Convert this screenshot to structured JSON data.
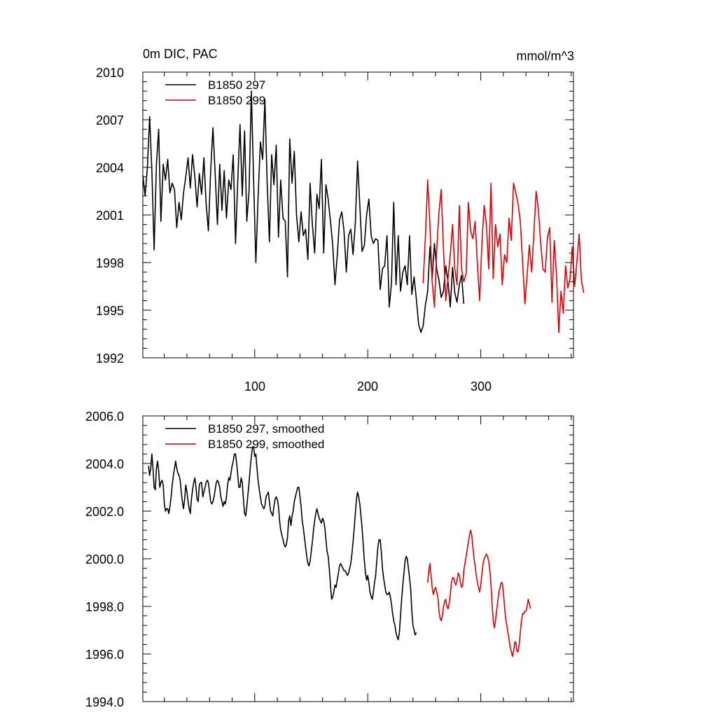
{
  "chart_data": [
    {
      "type": "line",
      "title": "0m DIC, PAC",
      "units": "mmol/m^3",
      "xlabel": "",
      "ylabel": "",
      "xlim": [
        1,
        382
      ],
      "ylim": [
        1992,
        2010
      ],
      "xticks": [
        100,
        200,
        300
      ],
      "xtick_labels": [
        "100",
        "200",
        "300"
      ],
      "yticks": [
        1992,
        1995,
        1998,
        2001,
        2004,
        2007,
        2010
      ],
      "ytick_labels": [
        "1992",
        "1995",
        "1998",
        "2001",
        "2004",
        "2007",
        "2010"
      ],
      "legend_position": "top-left",
      "series": [
        {
          "name": "B1850 297",
          "color": "#000000",
          "x_start": 1,
          "x_step": 2,
          "values": [
            2003.5,
            2002.2,
            2004.0,
            2007.2,
            2003.8,
            1998.8,
            2004.2,
            2006.4,
            2000.6,
            2004.2,
            2003.2,
            2004.5,
            2002.4,
            2003.0,
            2002.6,
            2000.2,
            2001.8,
            2000.7,
            2002.4,
            2003.4,
            2004.6,
            2002.7,
            2004.8,
            2003.4,
            2001.5,
            2003.6,
            2002.3,
            2004.6,
            2001.7,
            2000.0,
            2003.8,
            2006.5,
            2003.6,
            2000.4,
            2004.2,
            2001.3,
            2003.8,
            2000.8,
            2003.2,
            2002.6,
            2004.8,
            1999.2,
            2003.2,
            2006.7,
            2002.2,
            2006.3,
            2000.6,
            2002.5,
            2008.8,
            2003.2,
            1998.0,
            2002.1,
            2005.6,
            2004.5,
            2008.3,
            2003.0,
            1999.3,
            2004.8,
            2002.9,
            2005.4,
            1999.6,
            2003.2,
            2000.8,
            2000.6,
            1997.1,
            2005.8,
            2003.0,
            2005.0,
            2001.0,
            1999.3,
            2001.2,
            1999.7,
            2000.1,
            1998.2,
            2003.0,
            2000.4,
            1998.6,
            2002.3,
            2001.4,
            2004.5,
            1998.6,
            2002.9,
            2002.0,
            2000.6,
            1999.1,
            1996.6,
            1998.4,
            2000.7,
            2001.2,
            2000.0,
            1997.4,
            1999.7,
            2000.1,
            1998.5,
            2000.5,
            2004.4,
            2001.6,
            1998.7,
            1999.1,
            2001.0,
            2002.0,
            1999.7,
            1999.2,
            1999.5,
            1999.4,
            1996.3,
            1997.6,
            1997.8,
            1999.7,
            1995.2,
            1996.7,
            2001.8,
            1996.6,
            1999.7,
            1996.2,
            1997.4,
            1997.8,
            1996.6,
            1999.7,
            1996.0,
            1997.1,
            1995.7,
            1994.1,
            1993.6,
            1994.0,
            1995.3,
            1996.2,
            1999.0,
            1997.0,
            1999.2,
            1997.6,
            1996.9,
            1995.8,
            1996.2,
            1997.8,
            1996.8,
            1995.2,
            1997.7,
            1996.1,
            1995.5,
            1996.6,
            1997.2,
            1995.4
          ]
        },
        {
          "name": "B1850 299",
          "color": "#e00000",
          "x_start": 249,
          "x_step": 2,
          "values": [
            1996.7,
            1999.6,
            2003.2,
            2000.4,
            1996.8,
            1995.2,
            1998.8,
            2001.2,
            2002.6,
            1998.8,
            1995.6,
            1997.0,
            1998.5,
            2000.4,
            1997.6,
            1996.6,
            2001.6,
            1997.6,
            1996.8,
            1997.3,
            2001.8,
            2000.0,
            1999.5,
            2000.6,
            1997.9,
            1995.6,
            1999.3,
            2001.6,
            2000.4,
            1997.6,
            2003.0,
            1997.0,
            2000.4,
            1999.0,
            1999.8,
            1996.6,
            1998.5,
            1998.0,
            2000.8,
            1999.4,
            2003.0,
            2002.4,
            2001.7,
            2000.6,
            1998.0,
            1995.4,
            1997.2,
            1999.1,
            1997.4,
            1999.9,
            2002.5,
            2001.3,
            1999.2,
            1997.6,
            1997.4,
            1999.6,
            2000.2,
            1995.5,
            1999.4,
            1997.2,
            1993.6,
            1996.2,
            1994.8,
            1997.8,
            1996.4,
            1997.0,
            1999.0,
            1996.5,
            1998.0,
            1999.8,
            1996.9,
            1996.1
          ]
        }
      ]
    },
    {
      "type": "line",
      "title": "",
      "xlabel": "",
      "ylabel": "",
      "xlim": [
        1,
        382
      ],
      "ylim": [
        1994,
        2006
      ],
      "xticks": [
        100,
        200,
        300
      ],
      "yticks": [
        1994,
        1996,
        1998,
        2000,
        2002,
        2004,
        2006
      ],
      "ytick_labels": [
        "1994.0",
        "1996.0",
        "1998.0",
        "2000.0",
        "2002.0",
        "2004.0",
        "2006.0"
      ],
      "legend_position": "top-left",
      "series": [
        {
          "name": "B1850 297, smoothed",
          "color": "#000000",
          "x_start": 6,
          "x_step": 1,
          "values": [
            2003.9,
            2003.5,
            2003.8,
            2004.4,
            2003.8,
            2003.0,
            2002.9,
            2003.8,
            2004.1,
            2003.7,
            2003.0,
            2003.2,
            2003.3,
            2003.1,
            2002.3,
            2002.0,
            2002.1,
            2002.1,
            2001.9,
            2002.2,
            2002.6,
            2003.1,
            2003.5,
            2003.8,
            2004.1,
            2003.8,
            2003.6,
            2003.5,
            2003.3,
            2002.8,
            2002.4,
            2002.1,
            2002.5,
            2003.1,
            2002.8,
            2002.4,
            2002.1,
            2001.9,
            2002.5,
            2002.9,
            2003.2,
            2003.4,
            2003.0,
            2002.5,
            2002.4,
            2003.1,
            2003.2,
            2003.2,
            2002.6,
            2002.8,
            2003.0,
            2003.2,
            2003.3,
            2003.2,
            2002.8,
            2002.4,
            2002.3,
            2002.4,
            2002.6,
            2002.9,
            2003.2,
            2003.3,
            2003.2,
            2003.0,
            2002.6,
            2002.4,
            2002.2,
            2002.4,
            2002.3,
            2002.6,
            2003.1,
            2003.4,
            2003.3,
            2003.6,
            2003.9,
            2004.1,
            2004.4,
            2004.4,
            2004.0,
            2003.5,
            2003.0,
            2003.0,
            2003.4,
            2003.2,
            2002.5,
            2001.9,
            2001.8,
            2002.2,
            2002.7,
            2003.2,
            2003.8,
            2004.3,
            2004.7,
            2004.7,
            2004.3,
            2004.4,
            2003.8,
            2003.3,
            2002.9,
            2002.6,
            2002.3,
            2002.2,
            2002.1,
            2002.2,
            2002.6,
            2002.7,
            2002.8,
            2002.4,
            2002.0,
            2001.9,
            2001.8,
            2002.2,
            2002.5,
            2002.6,
            2002.5,
            2002.2,
            2001.6,
            2001.2,
            2001.0,
            2000.8,
            2000.6,
            2000.5,
            2000.6,
            2000.9,
            2001.6,
            2001.8,
            2001.4,
            2001.8,
            2002.0,
            2002.4,
            2002.6,
            2002.8,
            2003.0,
            2003.0,
            2002.6,
            2002.2,
            2001.6,
            2001.3,
            2000.9,
            2000.5,
            2000.1,
            1999.8,
            1999.7,
            1999.9,
            2000.3,
            2000.7,
            2001.2,
            2001.6,
            2001.9,
            2002.1,
            2001.9,
            2001.7,
            2001.6,
            2001.5,
            2001.7,
            2001.6,
            2001.3,
            2000.8,
            2000.3,
            2000.1,
            1999.6,
            1998.9,
            1998.3,
            1998.4,
            1998.6,
            1998.9,
            1998.8,
            1999.1,
            1999.4,
            1999.7,
            1999.8,
            1999.7,
            1999.6,
            1999.5,
            1999.5,
            1999.4,
            1999.3,
            1999.4,
            1999.6,
            1999.8,
            2000.2,
            2000.7,
            2001.3,
            2001.9,
            2002.5,
            2002.8,
            2002.6,
            2002.3,
            2001.8,
            2001.3,
            2000.6,
            1999.9,
            1999.4,
            1999.1,
            1999.3,
            1999.0,
            1998.6,
            1998.4,
            1998.3,
            1998.6,
            1999.0,
            1999.3,
            1999.9,
            2000.5,
            2000.8,
            2000.8,
            2000.3,
            1999.6,
            1999.2,
            1998.9,
            1998.6,
            1998.5,
            1998.5,
            1998.6,
            1998.4,
            1998.1,
            1997.7,
            1997.4,
            1997.2,
            1996.9,
            1996.7,
            1996.6,
            1996.9,
            1997.6,
            1998.3,
            1998.9,
            1999.4,
            1999.9,
            2000.1,
            2000.0,
            1999.6,
            1999.2,
            1998.7,
            1997.8,
            1997.2,
            1997.0,
            1996.8,
            1996.9
          ]
        },
        {
          "name": "B1850 299, smoothed",
          "color": "#e00000",
          "x_start": 253,
          "x_step": 1,
          "values": [
            1999.0,
            1999.5,
            1999.8,
            1999.3,
            1998.8,
            1998.5,
            1998.7,
            1998.8,
            1998.6,
            1998.4,
            1997.8,
            1997.5,
            1997.4,
            1997.6,
            1998.0,
            1998.2,
            1998.3,
            1998.0,
            1997.9,
            1998.1,
            1998.5,
            1999.0,
            1999.2,
            1999.2,
            1999.0,
            1998.9,
            1999.1,
            1999.4,
            1999.3,
            1999.0,
            1998.8,
            1998.9,
            1999.5,
            1999.8,
            2000.1,
            2000.4,
            2000.7,
            2001.0,
            2001.2,
            2001.0,
            2000.5,
            2000.0,
            1999.7,
            1999.3,
            1999.0,
            1998.8,
            1998.6,
            1998.9,
            1999.4,
            1999.8,
            2000.0,
            2000.1,
            2000.2,
            2000.1,
            1999.9,
            1999.5,
            1998.9,
            1998.1,
            1997.4,
            1997.1,
            1997.4,
            1997.8,
            1998.2,
            1998.6,
            1998.8,
            1999.0,
            1999.0,
            1998.6,
            1998.0,
            1997.5,
            1997.2,
            1996.9,
            1996.6,
            1996.3,
            1996.1,
            1995.9,
            1996.1,
            1996.5,
            1996.5,
            1996.1,
            1996.1,
            1996.4,
            1996.9,
            1997.4,
            1997.7,
            1997.7,
            1997.8,
            1997.8,
            1998.0,
            1998.3,
            1998.1,
            1997.9
          ]
        }
      ]
    }
  ]
}
